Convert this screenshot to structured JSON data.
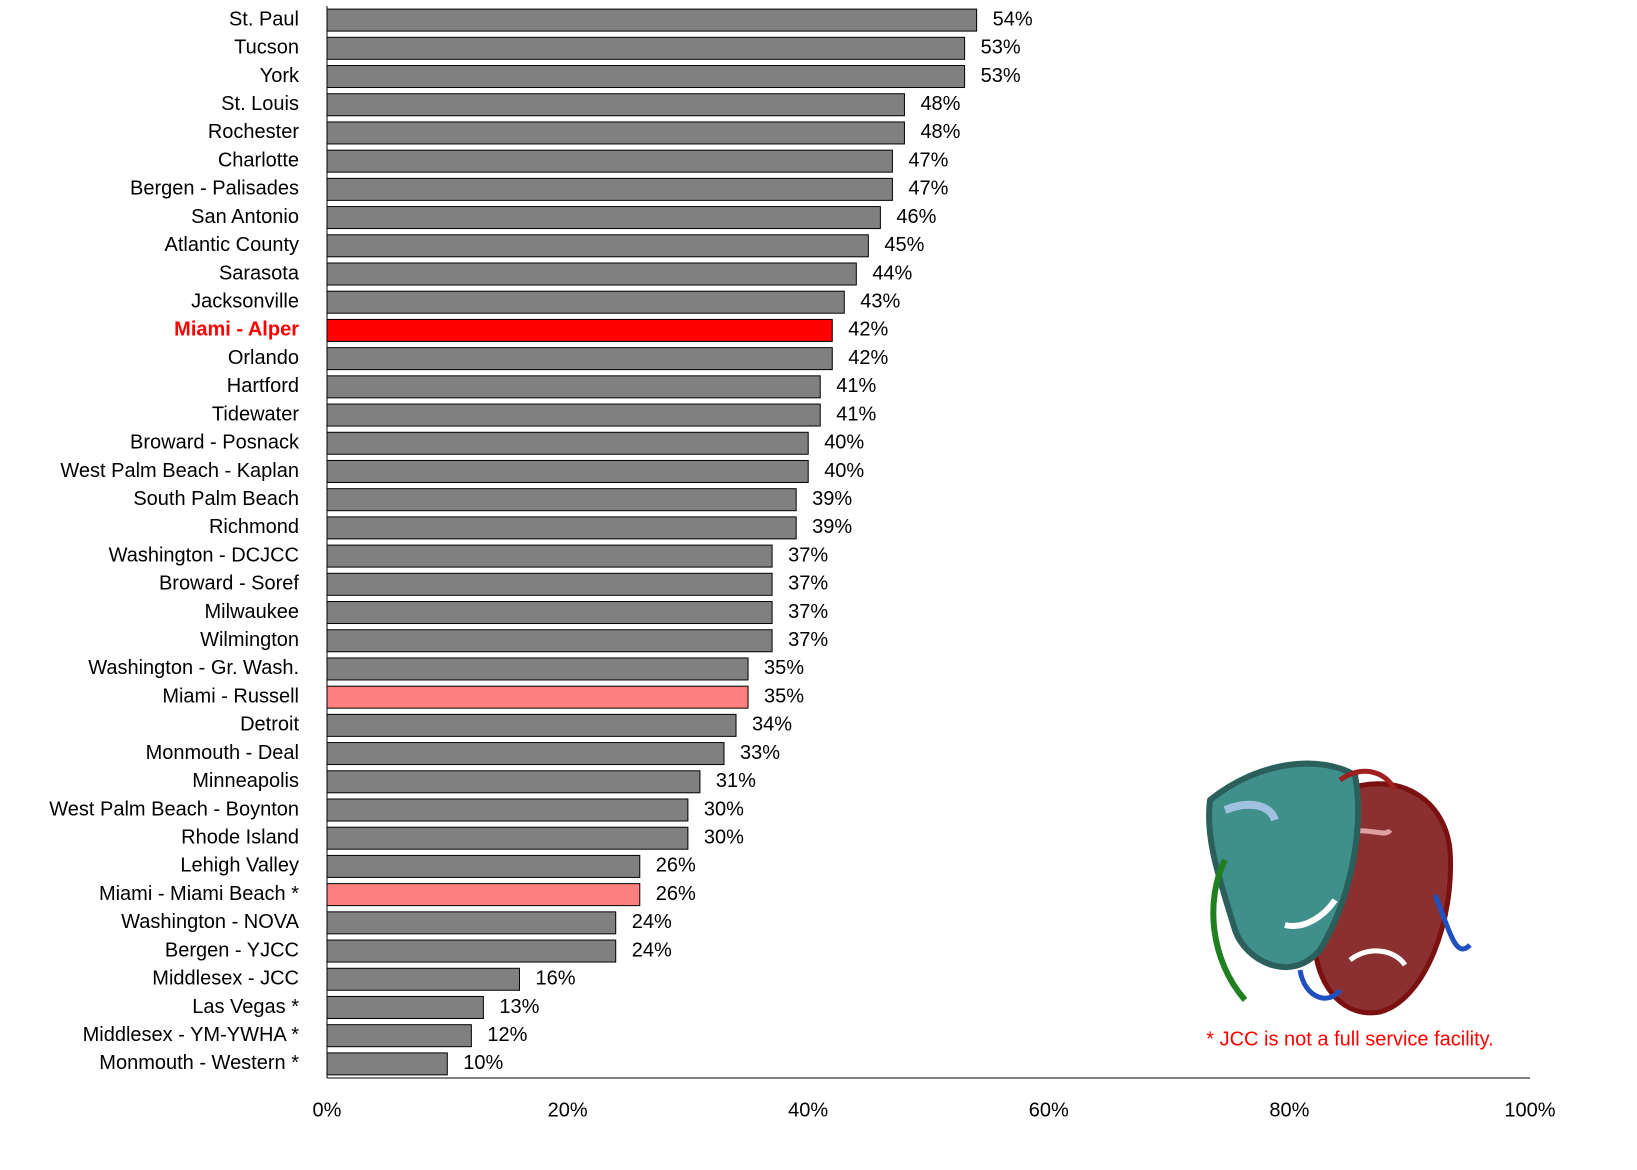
{
  "chart_data": {
    "type": "hbar",
    "categories": [
      "St. Paul",
      "Tucson",
      "York",
      "St. Louis",
      "Rochester",
      "Charlotte",
      "Bergen - Palisades",
      "San Antonio",
      "Atlantic County",
      "Sarasota",
      "Jacksonville",
      "Miami - Alper",
      "Orlando",
      "Hartford",
      "Tidewater",
      "Broward - Posnack",
      "West Palm Beach - Kaplan",
      "South Palm Beach",
      "Richmond",
      "Washington - DCJCC",
      "Broward - Soref",
      "Milwaukee",
      "Wilmington",
      "Washington - Gr. Wash.",
      "Miami - Russell",
      "Detroit",
      "Monmouth - Deal",
      "Minneapolis",
      "West Palm Beach - Boynton",
      "Rhode Island",
      "Lehigh Valley",
      "Miami - Miami Beach *",
      "Washington - NOVA",
      "Bergen - YJCC",
      "Middlesex - JCC",
      "Las Vegas *",
      "Middlesex - YM-YWHA *",
      "Monmouth - Western *"
    ],
    "values": [
      54,
      53,
      53,
      48,
      48,
      47,
      47,
      46,
      45,
      44,
      43,
      42,
      42,
      41,
      41,
      40,
      40,
      39,
      39,
      37,
      37,
      37,
      37,
      35,
      35,
      34,
      33,
      31,
      30,
      30,
      26,
      26,
      24,
      24,
      16,
      13,
      12,
      10
    ],
    "value_labels": [
      "54%",
      "53%",
      "53%",
      "48%",
      "48%",
      "47%",
      "47%",
      "46%",
      "45%",
      "44%",
      "43%",
      "42%",
      "42%",
      "41%",
      "41%",
      "40%",
      "40%",
      "39%",
      "39%",
      "37%",
      "37%",
      "37%",
      "37%",
      "35%",
      "35%",
      "34%",
      "33%",
      "31%",
      "30%",
      "30%",
      "26%",
      "26%",
      "24%",
      "24%",
      "16%",
      "13%",
      "12%",
      "10%"
    ],
    "colors": [
      "#808080",
      "#808080",
      "#808080",
      "#808080",
      "#808080",
      "#808080",
      "#808080",
      "#808080",
      "#808080",
      "#808080",
      "#808080",
      "#ff0000",
      "#808080",
      "#808080",
      "#808080",
      "#808080",
      "#808080",
      "#808080",
      "#808080",
      "#808080",
      "#808080",
      "#808080",
      "#808080",
      "#808080",
      "#ff8080",
      "#808080",
      "#808080",
      "#808080",
      "#808080",
      "#808080",
      "#808080",
      "#ff8080",
      "#808080",
      "#808080",
      "#808080",
      "#808080",
      "#808080",
      "#808080"
    ],
    "xlim": [
      0,
      100
    ],
    "xticks": [
      {
        "value": 0,
        "label": "0%"
      },
      {
        "value": 20,
        "label": "20%"
      },
      {
        "value": 40,
        "label": "40%"
      },
      {
        "value": 60,
        "label": "60%"
      },
      {
        "value": 80,
        "label": "80%"
      },
      {
        "value": 100,
        "label": "100%"
      }
    ],
    "annotation": "* JCC is not a full service facility."
  }
}
